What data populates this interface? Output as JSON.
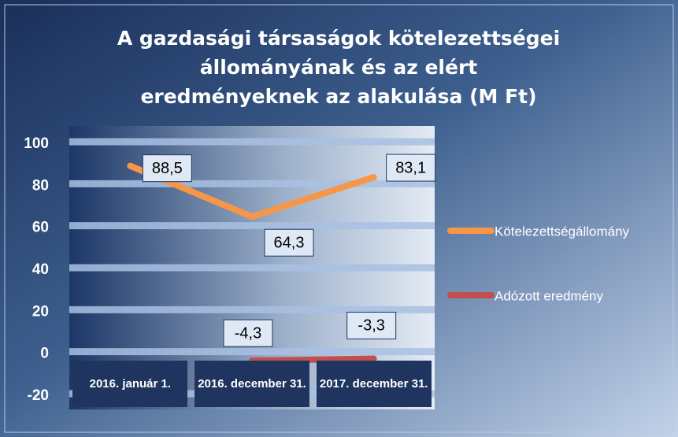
{
  "chart_data": {
    "type": "line",
    "title": "A gazdasági társaságok kötelezettségei állományának és az elért eredményeknek az alakulása (M Ft)",
    "categories": [
      "2016. január 1.",
      "2016. december 31.",
      "2017. december 31."
    ],
    "series": [
      {
        "name": "Kötelezettségállomány",
        "color": "#f79646",
        "values": [
          88.5,
          64.3,
          83.1
        ],
        "value_labels": [
          "88,5",
          "64,3",
          "83,1"
        ]
      },
      {
        "name": "Adózott eredmény",
        "color": "#c0504d",
        "values": [
          null,
          -4.3,
          -3.3
        ],
        "value_labels": [
          null,
          "-4,3",
          "-3,3"
        ]
      }
    ],
    "ylim": [
      -20,
      100
    ],
    "yticks": [
      -20,
      0,
      20,
      40,
      60,
      80,
      100
    ],
    "grid": true,
    "legend": "right"
  }
}
